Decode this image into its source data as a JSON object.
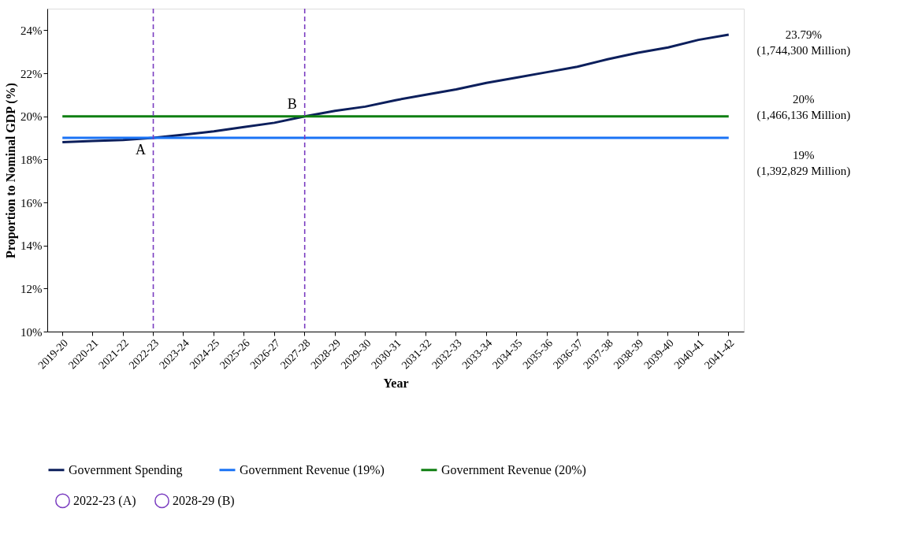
{
  "chart_data": {
    "type": "line",
    "xlabel": "Year",
    "ylabel": "Proportion to Nominal GDP (%)",
    "categories": [
      "2019-20",
      "2020-21",
      "2021-22",
      "2022-23",
      "2023-24",
      "2024-25",
      "2025-26",
      "2026-27",
      "2027-28",
      "2028-29",
      "2029-30",
      "2030-31",
      "2031-32",
      "2032-33",
      "2033-34",
      "2034-35",
      "2035-36",
      "2036-37",
      "2037-38",
      "2038-39",
      "2039-40",
      "2040-41",
      "2041-42"
    ],
    "series": [
      {
        "name": "Government Spending",
        "color": "#0c1f5c",
        "values": [
          18.8,
          18.85,
          18.9,
          19.0,
          19.15,
          19.3,
          19.5,
          19.7,
          20.0,
          20.25,
          20.45,
          20.75,
          21.0,
          21.25,
          21.55,
          21.8,
          22.05,
          22.3,
          22.65,
          22.95,
          23.2,
          23.55,
          23.79
        ]
      },
      {
        "name": "Government Revenue (19%)",
        "color": "#1a73f5",
        "values": [
          19,
          19,
          19,
          19,
          19,
          19,
          19,
          19,
          19,
          19,
          19,
          19,
          19,
          19,
          19,
          19,
          19,
          19,
          19,
          19,
          19,
          19,
          19
        ]
      },
      {
        "name": "Government Revenue (20%)",
        "color": "#0f7f12",
        "values": [
          20,
          20,
          20,
          20,
          20,
          20,
          20,
          20,
          20,
          20,
          20,
          20,
          20,
          20,
          20,
          20,
          20,
          20,
          20,
          20,
          20,
          20,
          20
        ]
      }
    ],
    "ylim": [
      10,
      25
    ],
    "yticks": [
      {
        "value": 10,
        "label": "10%"
      },
      {
        "value": 12,
        "label": "12%"
      },
      {
        "value": 14,
        "label": "14%"
      },
      {
        "value": 16,
        "label": "16%"
      },
      {
        "value": 18,
        "label": "18%"
      },
      {
        "value": 20,
        "label": "20%"
      },
      {
        "value": 22,
        "label": "22%"
      },
      {
        "value": 24,
        "label": "24%"
      }
    ],
    "ref_lines": [
      {
        "axis": "x",
        "value": "2022-23",
        "label": "2022-23 (A)",
        "color": "#7a3cc0",
        "line_style": "dashed"
      },
      {
        "axis": "x",
        "value": "2027-28",
        "label": "2028-29 (B)",
        "color": "#7a3cc0",
        "line_style": "dashed"
      }
    ],
    "annotations": [
      {
        "text": "A",
        "x": "2022-23",
        "y": 18.4
      },
      {
        "text": "B",
        "x": "2027-28",
        "y": 20.55
      },
      {
        "text": "23.79%\n(1,744,300 Million)",
        "x": "2041-42",
        "y": 23.79
      },
      {
        "text": "20%\n(1,466,136 Million)",
        "x": "2041-42",
        "y": 20
      },
      {
        "text": "19%\n(1,392,829 Million)",
        "x": "2041-42",
        "y": 19
      }
    ],
    "grid": false,
    "legend": "bottom",
    "marker": "none",
    "line_style": "solid"
  }
}
